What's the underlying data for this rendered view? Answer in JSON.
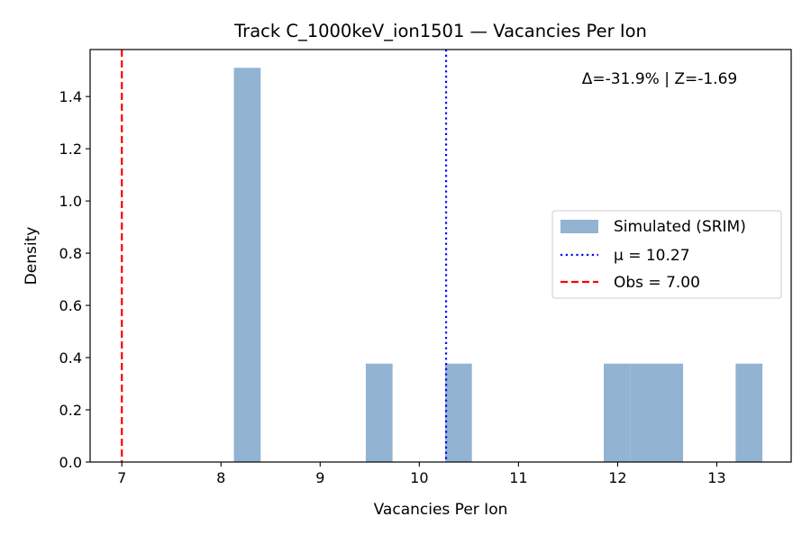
{
  "chart_data": {
    "type": "bar",
    "title": "Track C_1000keV_ion1501 — Vacancies Per Ion",
    "xlabel": "Vacancies Per Ion",
    "ylabel": "Density",
    "xlim": [
      6.68,
      13.75
    ],
    "ylim": [
      0.0,
      1.58
    ],
    "xticks": [
      7,
      8,
      9,
      10,
      11,
      12,
      13
    ],
    "yticks": [
      0.0,
      0.2,
      0.4,
      0.6,
      0.8,
      1.0,
      1.2,
      1.4
    ],
    "bins": [
      {
        "x0": 8.13,
        "x1": 8.4,
        "density": 1.51
      },
      {
        "x0": 9.46,
        "x1": 9.73,
        "density": 0.377
      },
      {
        "x0": 10.26,
        "x1": 10.53,
        "density": 0.377
      },
      {
        "x0": 11.86,
        "x1": 12.13,
        "density": 0.377
      },
      {
        "x0": 12.13,
        "x1": 12.4,
        "density": 0.377
      },
      {
        "x0": 12.4,
        "x1": 12.66,
        "density": 0.377
      },
      {
        "x0": 13.19,
        "x1": 13.46,
        "density": 0.377
      }
    ],
    "bar_color": "#92b3d2",
    "lines": [
      {
        "name": "mean",
        "x": 10.27,
        "color": "#0000ff",
        "style": "dotted"
      },
      {
        "name": "observed",
        "x": 7.0,
        "color": "#ff0000",
        "style": "dashed"
      }
    ],
    "legend": {
      "position": "center-right",
      "entries": [
        {
          "label": "Simulated (SRIM)",
          "kind": "patch",
          "color": "#92b3d2"
        },
        {
          "label": "μ = 10.27",
          "kind": "dotted",
          "color": "#0000ff"
        },
        {
          "label": "Obs = 7.00",
          "kind": "dashed",
          "color": "#ff0000"
        }
      ]
    },
    "annotation": "Δ=-31.9% | Z=-1.69",
    "grid": false
  }
}
